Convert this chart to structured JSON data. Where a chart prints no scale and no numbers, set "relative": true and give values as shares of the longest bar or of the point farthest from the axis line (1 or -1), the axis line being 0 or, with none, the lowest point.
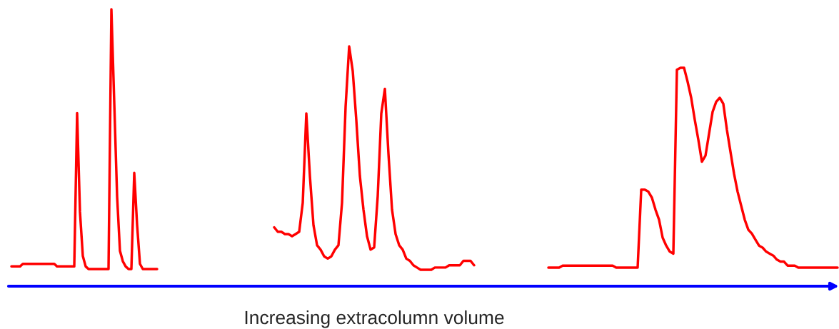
{
  "chart_data": [
    {
      "type": "line",
      "relative": true,
      "tick_labels": false,
      "categories": [
        null,
        null,
        null,
        null,
        null,
        null,
        null,
        null,
        null,
        null,
        null,
        null,
        null,
        null,
        null,
        null,
        null,
        null,
        null,
        null,
        null,
        null,
        null,
        null,
        null,
        null,
        null,
        null,
        null,
        null,
        null,
        null,
        null,
        null,
        null,
        null,
        null,
        null,
        null,
        null,
        null,
        null,
        null,
        null,
        null,
        null,
        null,
        null,
        null,
        null,
        null,
        null
      ],
      "series": [
        {
          "color": "#ff0000",
          "values": [
            0.01,
            0.01,
            0.01,
            0.01,
            0.02,
            0.02,
            0.02,
            0.02,
            0.02,
            0.02,
            0.02,
            0.02,
            0.02,
            0.02,
            0.02,
            0.02,
            0.01,
            0.01,
            0.01,
            0.01,
            0.01,
            0.01,
            0.01,
            0.6,
            0.22,
            0.05,
            0.01,
            0,
            0,
            0,
            0,
            0,
            0,
            0,
            0,
            1,
            0.64,
            0.28,
            0.07,
            0.03,
            0.01,
            0,
            0,
            0.37,
            0.17,
            0.02,
            0,
            0,
            0,
            0,
            0,
            0
          ]
        }
      ]
    },
    {
      "type": "line",
      "relative": true,
      "tick_labels": false,
      "xlabel": "Increasing extracolumn volume",
      "categories": [
        null,
        null,
        null,
        null,
        null,
        null,
        null,
        null,
        null,
        null,
        null,
        null,
        null,
        null,
        null,
        null,
        null,
        null,
        null,
        null,
        null,
        null,
        null,
        null,
        null,
        null,
        null,
        null,
        null,
        null,
        null,
        null,
        null,
        null,
        null,
        null,
        null,
        null,
        null,
        null,
        null,
        null,
        null,
        null,
        null,
        null,
        null,
        null,
        null,
        null,
        null,
        null,
        null,
        null,
        null,
        null,
        null
      ],
      "series": [
        {
          "color": "#ff0000",
          "values": [
            0.19,
            0.17,
            0.17,
            0.16,
            0.16,
            0.15,
            0.16,
            0.17,
            0.3,
            0.7,
            0.42,
            0.2,
            0.11,
            0.09,
            0.06,
            0.05,
            0.06,
            0.09,
            0.11,
            0.3,
            0.73,
            1,
            0.89,
            0.67,
            0.42,
            0.27,
            0.15,
            0.09,
            0.1,
            0.33,
            0.7,
            0.81,
            0.52,
            0.27,
            0.16,
            0.11,
            0.09,
            0.05,
            0.04,
            0.02,
            0.01,
            0,
            0,
            0,
            0,
            0.01,
            0.01,
            0.01,
            0.01,
            0.02,
            0.02,
            0.02,
            0.02,
            0.04,
            0.04,
            0.04,
            0.02
          ]
        }
      ]
    },
    {
      "type": "line",
      "relative": true,
      "tick_labels": false,
      "categories": [
        null,
        null,
        null,
        null,
        null,
        null,
        null,
        null,
        null,
        null,
        null,
        null,
        null,
        null,
        null,
        null,
        null,
        null,
        null,
        null,
        null,
        null,
        null,
        null,
        null,
        null,
        null,
        null,
        null,
        null,
        null,
        null,
        null,
        null,
        null,
        null,
        null,
        null,
        null,
        null,
        null,
        null,
        null,
        null,
        null,
        null,
        null,
        null,
        null,
        null,
        null,
        null,
        null,
        null,
        null,
        null,
        null,
        null,
        null,
        null,
        null,
        null,
        null,
        null,
        null,
        null,
        null,
        null,
        null,
        null,
        null,
        null,
        null,
        null,
        null,
        null,
        null,
        null,
        null,
        null,
        null,
        null
      ],
      "series": [
        {
          "color": "#ff0000",
          "values": [
            0,
            0,
            0,
            0,
            0.01,
            0.01,
            0.01,
            0.01,
            0.01,
            0.01,
            0.01,
            0.01,
            0.01,
            0.01,
            0.01,
            0.01,
            0.01,
            0.01,
            0.01,
            0,
            0,
            0,
            0,
            0,
            0,
            0,
            0.39,
            0.39,
            0.38,
            0.35,
            0.29,
            0.24,
            0.15,
            0.11,
            0.08,
            0.07,
            0.99,
            1,
            1,
            0.93,
            0.85,
            0.74,
            0.64,
            0.53,
            0.56,
            0.67,
            0.78,
            0.83,
            0.85,
            0.82,
            0.69,
            0.58,
            0.47,
            0.38,
            0.31,
            0.24,
            0.19,
            0.17,
            0.14,
            0.11,
            0.1,
            0.08,
            0.07,
            0.06,
            0.04,
            0.03,
            0.03,
            0.01,
            0.01,
            0.01,
            0,
            0,
            0,
            0,
            0,
            0,
            0,
            0,
            0,
            0,
            0,
            0
          ]
        }
      ]
    }
  ]
}
